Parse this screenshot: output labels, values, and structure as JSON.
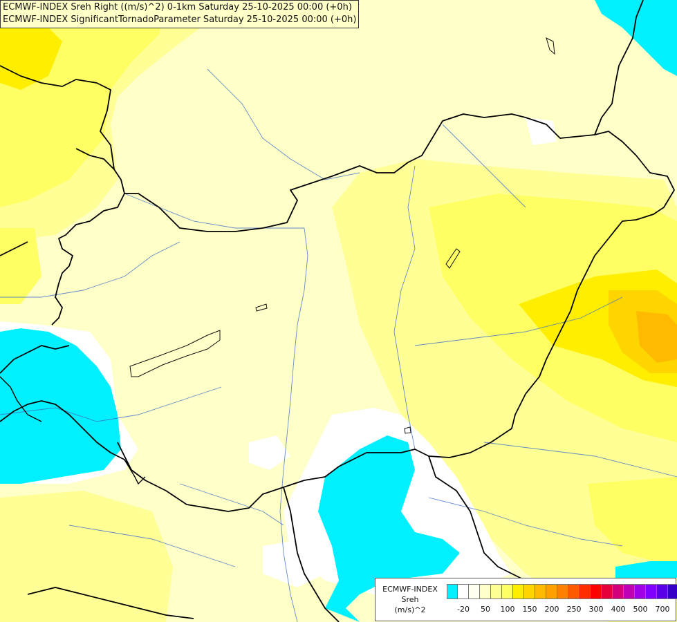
{
  "header": {
    "line1": "ECMWF-INDEX Sreh Right ((m/s)^2) 0-1km Saturday 25-10-2025 00:00 (+0h)",
    "line2": "ECMWF-INDEX SignificantTornadoParameter Saturday 25-10-2025 00:00 (+0h)"
  },
  "legend": {
    "model": "ECMWF-INDEX",
    "parameter": "Sreh",
    "unit": "(m/s)^2",
    "colors": [
      "#00f0ff",
      "#ffffff",
      "#fffff0",
      "#ffffc8",
      "#ffff96",
      "#ffff64",
      "#ffee00",
      "#ffd500",
      "#ffba00",
      "#ffa000",
      "#ff8000",
      "#ff5a00",
      "#ff2d00",
      "#ff0000",
      "#e6003c",
      "#d2007a",
      "#c000b4",
      "#a000e6",
      "#8000ff",
      "#5a00e6",
      "#3700c8",
      "#000080"
    ],
    "ticks": [
      "-20",
      "50",
      "100",
      "150",
      "200",
      "250",
      "300",
      "400",
      "500",
      "700"
    ]
  }
}
